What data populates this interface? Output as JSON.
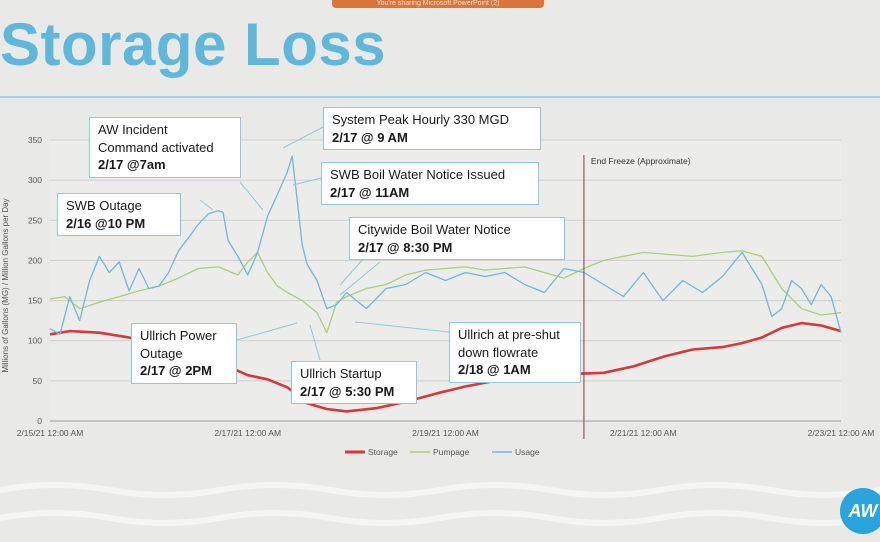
{
  "sharing_banner": "You're sharing Microsoft PowerPoint (2)",
  "slide_title": "Storage Loss",
  "logo_text": "AW",
  "callouts": {
    "aw_incident": {
      "line1": "AW Incident",
      "line2": "Command activated",
      "line3": "2/17 @7am"
    },
    "system_peak": {
      "line1": "System Peak Hourly 330 MGD",
      "line2": "2/17 @ 9 AM"
    },
    "swb_outage": {
      "line1": "SWB  Outage",
      "line2": "2/16 @10 PM"
    },
    "swb_boil": {
      "line1": "SWB Boil Water Notice Issued",
      "line2": "2/17 @ 11AM"
    },
    "citywide_boil": {
      "line1": "Citywide Boil Water Notice",
      "line2": "2/17 @ 8:30 PM"
    },
    "ullrich_power": {
      "line1": "Ullrich Power",
      "line2": "Outage",
      "line3": "2/17 @ 2PM"
    },
    "ullrich_startup": {
      "line1": "Ullrich Startup",
      "line2": "2/17 @ 5:30 PM"
    },
    "ullrich_preshut": {
      "line1": "Ullrich at pre-shut",
      "line2": "down flowrate",
      "line3": "2/18 @ 1AM"
    }
  },
  "chart_data": {
    "type": "line",
    "ylabel": "Millions of Gallons (MG) / Million Gallons per Day",
    "ylim": [
      0,
      350
    ],
    "yticks": [
      "0",
      "50",
      "100",
      "150",
      "200",
      "250",
      "300",
      "350"
    ],
    "xlim": [
      0,
      8
    ],
    "xticks": [
      {
        "x": 0,
        "label": "2/15/21 12:00 AM"
      },
      {
        "x": 2,
        "label": "2/17/21 12:00 AM"
      },
      {
        "x": 4,
        "label": "2/19/21 12:00 AM"
      },
      {
        "x": 6,
        "label": "2/21/21 12:00 AM"
      },
      {
        "x": 8,
        "label": "2/23/21 12:00 AM"
      }
    ],
    "grid": "horizontal",
    "legend_position": "bottom-center",
    "annotation_line": {
      "x": 5.4,
      "label": "End Freeze (Approximate)"
    },
    "series": [
      {
        "name": "Storage",
        "color": "#d33a3a",
        "x": [
          0,
          0.2,
          0.5,
          0.8,
          1.0,
          1.3,
          1.5,
          1.8,
          2.0,
          2.2,
          2.4,
          2.6,
          2.8,
          3.0,
          3.3,
          3.6,
          3.9,
          4.2,
          4.5,
          4.8,
          5.0,
          5.2,
          5.4,
          5.6,
          5.9,
          6.2,
          6.5,
          6.8,
          7.0,
          7.2,
          7.4,
          7.6,
          7.8,
          8.0
        ],
        "values": [
          108,
          112,
          110,
          104,
          97,
          88,
          80,
          68,
          57,
          52,
          42,
          22,
          15,
          12,
          16,
          24,
          34,
          43,
          50,
          55,
          58,
          59,
          59,
          60,
          68,
          80,
          89,
          92,
          97,
          104,
          116,
          122,
          119,
          112
        ]
      },
      {
        "name": "Pumpage",
        "color": "#a8cf7a",
        "x": [
          0,
          0.15,
          0.3,
          0.5,
          0.7,
          0.9,
          1.1,
          1.3,
          1.5,
          1.7,
          1.9,
          2.0,
          2.1,
          2.2,
          2.3,
          2.4,
          2.55,
          2.7,
          2.8,
          2.9,
          3.0,
          3.2,
          3.4,
          3.6,
          3.8,
          4.0,
          4.2,
          4.4,
          4.6,
          4.8,
          5.0,
          5.2,
          5.4,
          5.6,
          5.8,
          6.0,
          6.2,
          6.5,
          6.8,
          7.0,
          7.2,
          7.4,
          7.6,
          7.8,
          8.0
        ],
        "values": [
          152,
          155,
          140,
          148,
          155,
          162,
          168,
          178,
          190,
          192,
          182,
          198,
          210,
          185,
          168,
          160,
          150,
          135,
          110,
          148,
          155,
          165,
          170,
          182,
          188,
          190,
          192,
          188,
          190,
          192,
          185,
          178,
          190,
          200,
          205,
          210,
          208,
          205,
          210,
          212,
          205,
          165,
          140,
          132,
          135
        ]
      },
      {
        "name": "Usage",
        "color": "#6fb8dc",
        "x": [
          0,
          0.1,
          0.2,
          0.3,
          0.4,
          0.5,
          0.6,
          0.7,
          0.8,
          0.9,
          1.0,
          1.1,
          1.2,
          1.3,
          1.4,
          1.5,
          1.6,
          1.7,
          1.75,
          1.8,
          1.9,
          2.0,
          2.1,
          2.2,
          2.3,
          2.4,
          2.45,
          2.5,
          2.55,
          2.6,
          2.7,
          2.8,
          2.9,
          3.0,
          3.1,
          3.2,
          3.4,
          3.6,
          3.8,
          4.0,
          4.2,
          4.4,
          4.6,
          4.8,
          5.0,
          5.2,
          5.4,
          5.6,
          5.8,
          6.0,
          6.2,
          6.4,
          6.6,
          6.8,
          7.0,
          7.2,
          7.3,
          7.4,
          7.5,
          7.6,
          7.7,
          7.8,
          7.9,
          8.0
        ],
        "values": [
          115,
          108,
          155,
          125,
          175,
          205,
          185,
          198,
          162,
          190,
          165,
          168,
          185,
          212,
          228,
          245,
          258,
          262,
          260,
          225,
          205,
          182,
          210,
          255,
          282,
          310,
          330,
          275,
          220,
          195,
          175,
          140,
          145,
          160,
          150,
          140,
          165,
          170,
          185,
          175,
          185,
          180,
          185,
          170,
          160,
          190,
          185,
          170,
          155,
          185,
          150,
          175,
          160,
          180,
          210,
          170,
          130,
          140,
          175,
          165,
          145,
          170,
          155,
          110
        ]
      }
    ]
  }
}
